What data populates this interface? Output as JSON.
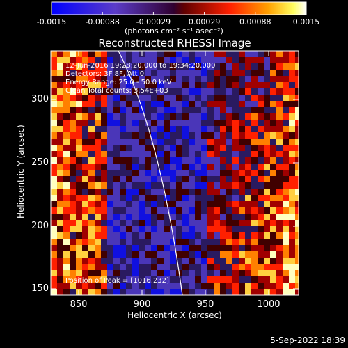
{
  "colorbar": {
    "tick_labels": [
      "-0.0015",
      "-0.00088",
      "-0.00029",
      "0.00029",
      "0.00088",
      "0.0015"
    ],
    "units_label": "(photons cm⁻² s⁻¹ asec⁻²)",
    "range": [
      -0.0015,
      0.0015
    ],
    "colors": [
      "#0000ff",
      "#6040c0",
      "#b000b0",
      "#ff0000",
      "#ff8000",
      "#ffff80",
      "#ffffff"
    ]
  },
  "plot": {
    "title": "Reconstructed RHESSI Image",
    "annotations": {
      "time_range": "12-Jun-2016 19:28:20.000 to 19:34:20.000",
      "detectors": "Detectors: 3F 8F, Att 0",
      "energy": "Energy Range: 25.0 - 50.0 keV",
      "clean": "Clean    Total counts: 3.54E+03",
      "peak": "Position of Peak = [1016,232]"
    },
    "xlabel": "Heliocentric X (arcsec)",
    "ylabel": "Heliocentric Y (arcsec)",
    "x_ticks": [
      "850",
      "900",
      "950",
      "1000"
    ],
    "y_ticks": [
      "150",
      "200",
      "250",
      "300"
    ]
  },
  "footer": {
    "date": "5-Sep-2022 18:39"
  }
}
